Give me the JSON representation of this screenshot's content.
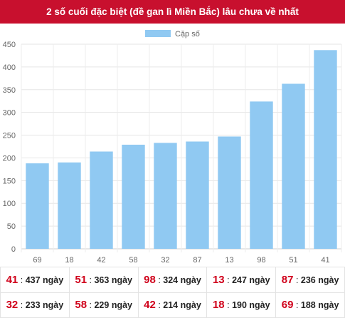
{
  "title": "2 số cuối đặc biệt (đề gan lì Miền Bắc) lâu chưa về nhất",
  "chart_data": {
    "type": "bar",
    "legend": "Cặp số",
    "legend_position": "top",
    "color": "#90c9f2",
    "categories": [
      "69",
      "18",
      "42",
      "58",
      "32",
      "87",
      "13",
      "98",
      "51",
      "41"
    ],
    "values": [
      188,
      190,
      214,
      229,
      233,
      236,
      247,
      324,
      363,
      437
    ],
    "ylim": [
      0,
      450
    ],
    "yticks": [
      0,
      50,
      100,
      150,
      200,
      250,
      300,
      350,
      400,
      450
    ],
    "grid": true
  },
  "table": {
    "separator": " : ",
    "rows": [
      [
        {
          "num": "41",
          "days": "437 ngày"
        },
        {
          "num": "51",
          "days": "363 ngày"
        },
        {
          "num": "98",
          "days": "324 ngày"
        },
        {
          "num": "13",
          "days": "247 ngày"
        },
        {
          "num": "87",
          "days": "236 ngày"
        }
      ],
      [
        {
          "num": "32",
          "days": "233 ngày"
        },
        {
          "num": "58",
          "days": "229 ngày"
        },
        {
          "num": "42",
          "days": "214 ngày"
        },
        {
          "num": "18",
          "days": "190 ngày"
        },
        {
          "num": "69",
          "days": "188 ngày"
        }
      ]
    ]
  }
}
